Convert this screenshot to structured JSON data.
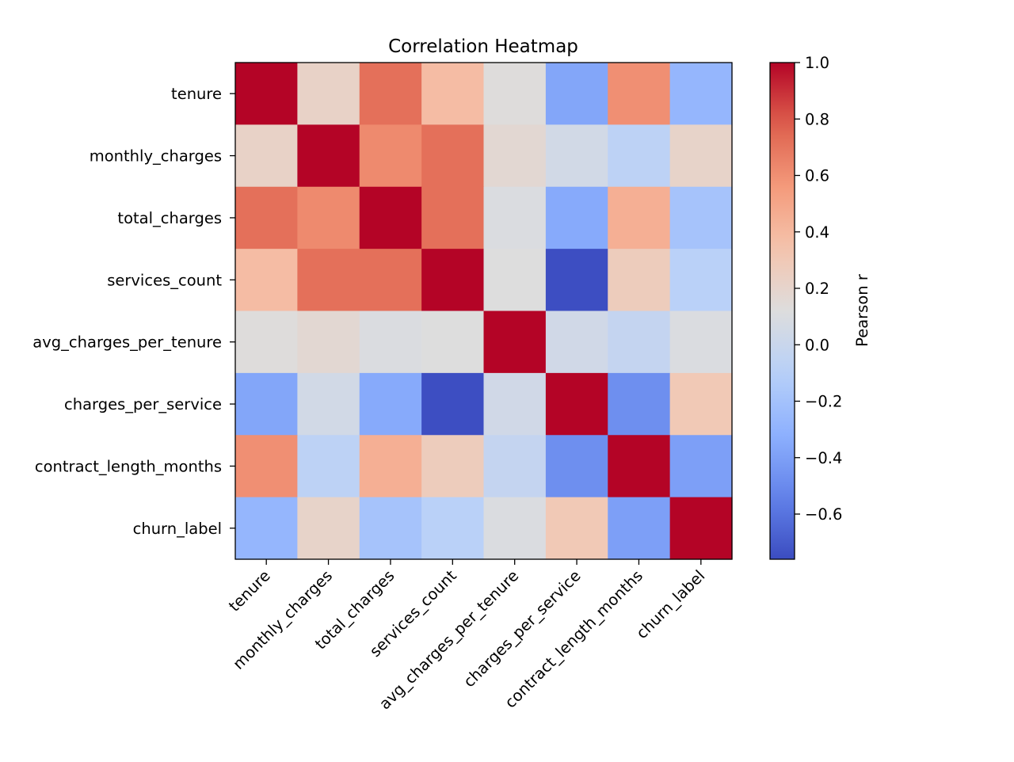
{
  "chart_data": {
    "type": "heatmap",
    "title": "Correlation Heatmap",
    "rows": [
      "tenure",
      "monthly_charges",
      "total_charges",
      "services_count",
      "avg_charges_per_tenure",
      "charges_per_service",
      "contract_length_months",
      "churn_label"
    ],
    "columns": [
      "tenure",
      "monthly_charges",
      "total_charges",
      "services_count",
      "avg_charges_per_tenure",
      "charges_per_service",
      "contract_length_months",
      "churn_label"
    ],
    "values": [
      [
        1.0,
        0.22,
        0.72,
        0.38,
        0.13,
        -0.37,
        0.6,
        -0.28
      ],
      [
        0.22,
        1.0,
        0.62,
        0.72,
        0.17,
        0.05,
        -0.07,
        0.21
      ],
      [
        0.72,
        0.62,
        1.0,
        0.72,
        0.1,
        -0.35,
        0.45,
        -0.19
      ],
      [
        0.38,
        0.72,
        0.72,
        1.0,
        0.12,
        -0.75,
        0.27,
        -0.09
      ],
      [
        0.13,
        0.17,
        0.1,
        0.12,
        1.0,
        0.04,
        -0.03,
        0.1
      ],
      [
        -0.37,
        0.05,
        -0.35,
        -0.75,
        0.04,
        1.0,
        -0.48,
        0.3
      ],
      [
        0.6,
        -0.07,
        0.45,
        0.27,
        -0.03,
        -0.48,
        1.0,
        -0.4
      ],
      [
        -0.28,
        0.21,
        -0.19,
        -0.09,
        0.1,
        0.3,
        -0.4,
        1.0
      ]
    ],
    "colorbar": {
      "label": "Pearson r",
      "range": [
        -0.76,
        1.0
      ],
      "ticks": [
        "1.0",
        "0.8",
        "0.6",
        "0.4",
        "0.2",
        "0.0",
        "−0.2",
        "−0.4",
        "−0.6"
      ],
      "tick_values": [
        1.0,
        0.8,
        0.6,
        0.4,
        0.2,
        0.0,
        -0.2,
        -0.4,
        -0.6
      ],
      "colormap": "coolwarm"
    },
    "grid": false
  }
}
